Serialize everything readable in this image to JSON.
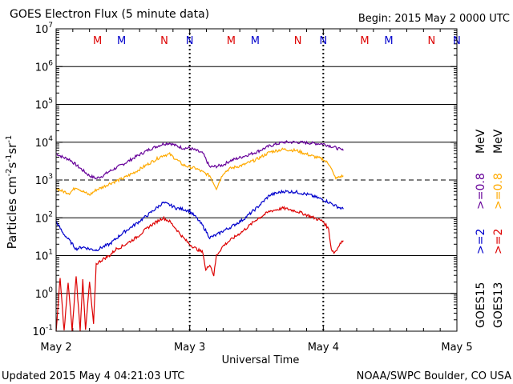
{
  "chart_data": {
    "type": "line",
    "title": "GOES Electron Flux (5 minute data)",
    "begin_label": "Begin: 2015 May 2 0000 UTC",
    "xlabel": "Universal Time",
    "ylabel_parts": [
      "Particles cm",
      "-2",
      "s",
      "-1",
      "sr",
      "-1"
    ],
    "x_unit": "days since 2015 May 2 0000 UTC",
    "xlim": [
      0,
      3
    ],
    "x_ticks": [
      {
        "x": 0,
        "label": "May 2"
      },
      {
        "x": 1,
        "label": "May 3"
      },
      {
        "x": 2,
        "label": "May 4"
      },
      {
        "x": 3,
        "label": "May 5"
      }
    ],
    "y_scale": "log",
    "ylim": [
      0.1,
      10000000
    ],
    "y_ticks": [
      {
        "value": 10000000,
        "base": "10",
        "exp": "7"
      },
      {
        "value": 1000000,
        "base": "10",
        "exp": "6"
      },
      {
        "value": 100000,
        "base": "10",
        "exp": "5"
      },
      {
        "value": 10000,
        "base": "10",
        "exp": "4"
      },
      {
        "value": 1000,
        "base": "10",
        "exp": "3"
      },
      {
        "value": 100,
        "base": "10",
        "exp": "2"
      },
      {
        "value": 10,
        "base": "10",
        "exp": "1"
      },
      {
        "value": 1,
        "base": "10",
        "exp": "0"
      },
      {
        "value": 0.1,
        "base": "10",
        "exp": "-1"
      }
    ],
    "threshold_line": {
      "value": 1000,
      "style": "dashed"
    },
    "midnight_markers": [
      1,
      2
    ],
    "mn_markers": [
      {
        "x": 0.31,
        "label": "M",
        "color": "#dd0000"
      },
      {
        "x": 0.49,
        "label": "M",
        "color": "#0000cc"
      },
      {
        "x": 0.81,
        "label": "N",
        "color": "#dd0000"
      },
      {
        "x": 1.0,
        "label": "N",
        "color": "#0000cc"
      },
      {
        "x": 1.31,
        "label": "M",
        "color": "#dd0000"
      },
      {
        "x": 1.49,
        "label": "M",
        "color": "#0000cc"
      },
      {
        "x": 1.81,
        "label": "N",
        "color": "#dd0000"
      },
      {
        "x": 2.0,
        "label": "N",
        "color": "#0000cc"
      },
      {
        "x": 2.31,
        "label": "M",
        "color": "#dd0000"
      },
      {
        "x": 2.49,
        "label": "M",
        "color": "#0000cc"
      },
      {
        "x": 2.81,
        "label": "N",
        "color": "#dd0000"
      },
      {
        "x": 3.0,
        "label": "N",
        "color": "#0000cc"
      }
    ],
    "legend": [
      {
        "satellite": "GOES15",
        "threshold": ">=0.8",
        "color": "#660099"
      },
      {
        "satellite": "GOES13",
        "threshold": ">=0.8",
        "color": "#ffaa00"
      },
      {
        "satellite": "GOES15",
        "threshold": ">=2",
        "color": "#0000cc"
      },
      {
        "satellite": "GOES13",
        "threshold": ">=2",
        "color": "#dd0000"
      }
    ],
    "legend_units": [
      "MeV",
      "MeV"
    ],
    "series": [
      {
        "name": "GOES15 >=0.8 MeV",
        "color": "#660099",
        "x": [
          0,
          0.05,
          0.1,
          0.15,
          0.2,
          0.25,
          0.3,
          0.35,
          0.4,
          0.5,
          0.6,
          0.7,
          0.8,
          0.85,
          0.9,
          0.95,
          1.0,
          1.05,
          1.1,
          1.15,
          1.2,
          1.25,
          1.3,
          1.4,
          1.5,
          1.6,
          1.7,
          1.8,
          1.9,
          2.0,
          2.05,
          2.1,
          2.15
        ],
        "y": [
          5000,
          4000,
          3500,
          2500,
          1800,
          1300,
          1100,
          1300,
          1700,
          2600,
          4200,
          6500,
          9000,
          9500,
          8000,
          7000,
          7000,
          6000,
          5000,
          2200,
          2300,
          2500,
          3200,
          4200,
          5500,
          8000,
          10000,
          10000,
          9500,
          9000,
          8000,
          7000,
          6000
        ]
      },
      {
        "name": "GOES13 >=0.8 MeV",
        "color": "#ffaa00",
        "x": [
          0,
          0.05,
          0.1,
          0.15,
          0.2,
          0.25,
          0.3,
          0.35,
          0.4,
          0.5,
          0.6,
          0.7,
          0.8,
          0.85,
          0.9,
          0.95,
          1.0,
          1.05,
          1.1,
          1.15,
          1.2,
          1.25,
          1.3,
          1.4,
          1.5,
          1.6,
          1.7,
          1.8,
          1.9,
          2.0,
          2.05,
          2.08,
          2.1,
          2.12,
          2.15
        ],
        "y": [
          600,
          500,
          450,
          650,
          500,
          400,
          550,
          650,
          800,
          1100,
          1700,
          2800,
          4500,
          4800,
          3500,
          2500,
          2200,
          2000,
          1600,
          1300,
          600,
          1500,
          2000,
          2500,
          3500,
          5500,
          6500,
          6000,
          4500,
          3500,
          2500,
          1300,
          1100,
          1200,
          1300
        ]
      },
      {
        "name": "GOES15 >=2 MeV",
        "color": "#0000cc",
        "x": [
          0,
          0.05,
          0.1,
          0.15,
          0.2,
          0.25,
          0.3,
          0.35,
          0.4,
          0.5,
          0.6,
          0.7,
          0.8,
          0.85,
          0.9,
          0.95,
          1.0,
          1.05,
          1.1,
          1.15,
          1.2,
          1.25,
          1.3,
          1.4,
          1.5,
          1.6,
          1.7,
          1.8,
          1.9,
          2.0,
          2.05,
          2.1,
          2.15
        ],
        "y": [
          80,
          40,
          25,
          15,
          17,
          15,
          14,
          17,
          20,
          40,
          70,
          130,
          250,
          220,
          180,
          170,
          150,
          100,
          60,
          30,
          35,
          45,
          55,
          90,
          180,
          400,
          500,
          480,
          400,
          300,
          250,
          200,
          170
        ]
      },
      {
        "name": "GOES13 >=2 MeV",
        "color": "#dd0000",
        "x": [
          0,
          0.03,
          0.06,
          0.09,
          0.12,
          0.15,
          0.18,
          0.2,
          0.22,
          0.25,
          0.28,
          0.3,
          0.35,
          0.4,
          0.45,
          0.5,
          0.6,
          0.7,
          0.8,
          0.85,
          0.9,
          0.95,
          1.0,
          1.05,
          1.1,
          1.12,
          1.15,
          1.18,
          1.2,
          1.25,
          1.3,
          1.4,
          1.5,
          1.6,
          1.7,
          1.8,
          1.9,
          2.0,
          2.04,
          2.06,
          2.08,
          2.1,
          2.12,
          2.15
        ],
        "y": [
          0.1,
          2.5,
          0.1,
          2.0,
          0.1,
          3.0,
          0.1,
          2.5,
          0.1,
          2.0,
          0.15,
          6.0,
          8.0,
          10.0,
          15.0,
          18.0,
          30,
          60,
          100,
          80,
          50,
          30,
          20,
          15,
          12,
          4,
          6,
          3,
          10,
          18,
          25,
          45,
          90,
          150,
          180,
          150,
          110,
          80,
          50,
          15,
          12,
          14,
          20,
          25
        ]
      }
    ]
  },
  "footer": {
    "updated": "Updated 2015 May  4 04:21:03 UTC",
    "source": "NOAA/SWPC Boulder, CO USA"
  }
}
